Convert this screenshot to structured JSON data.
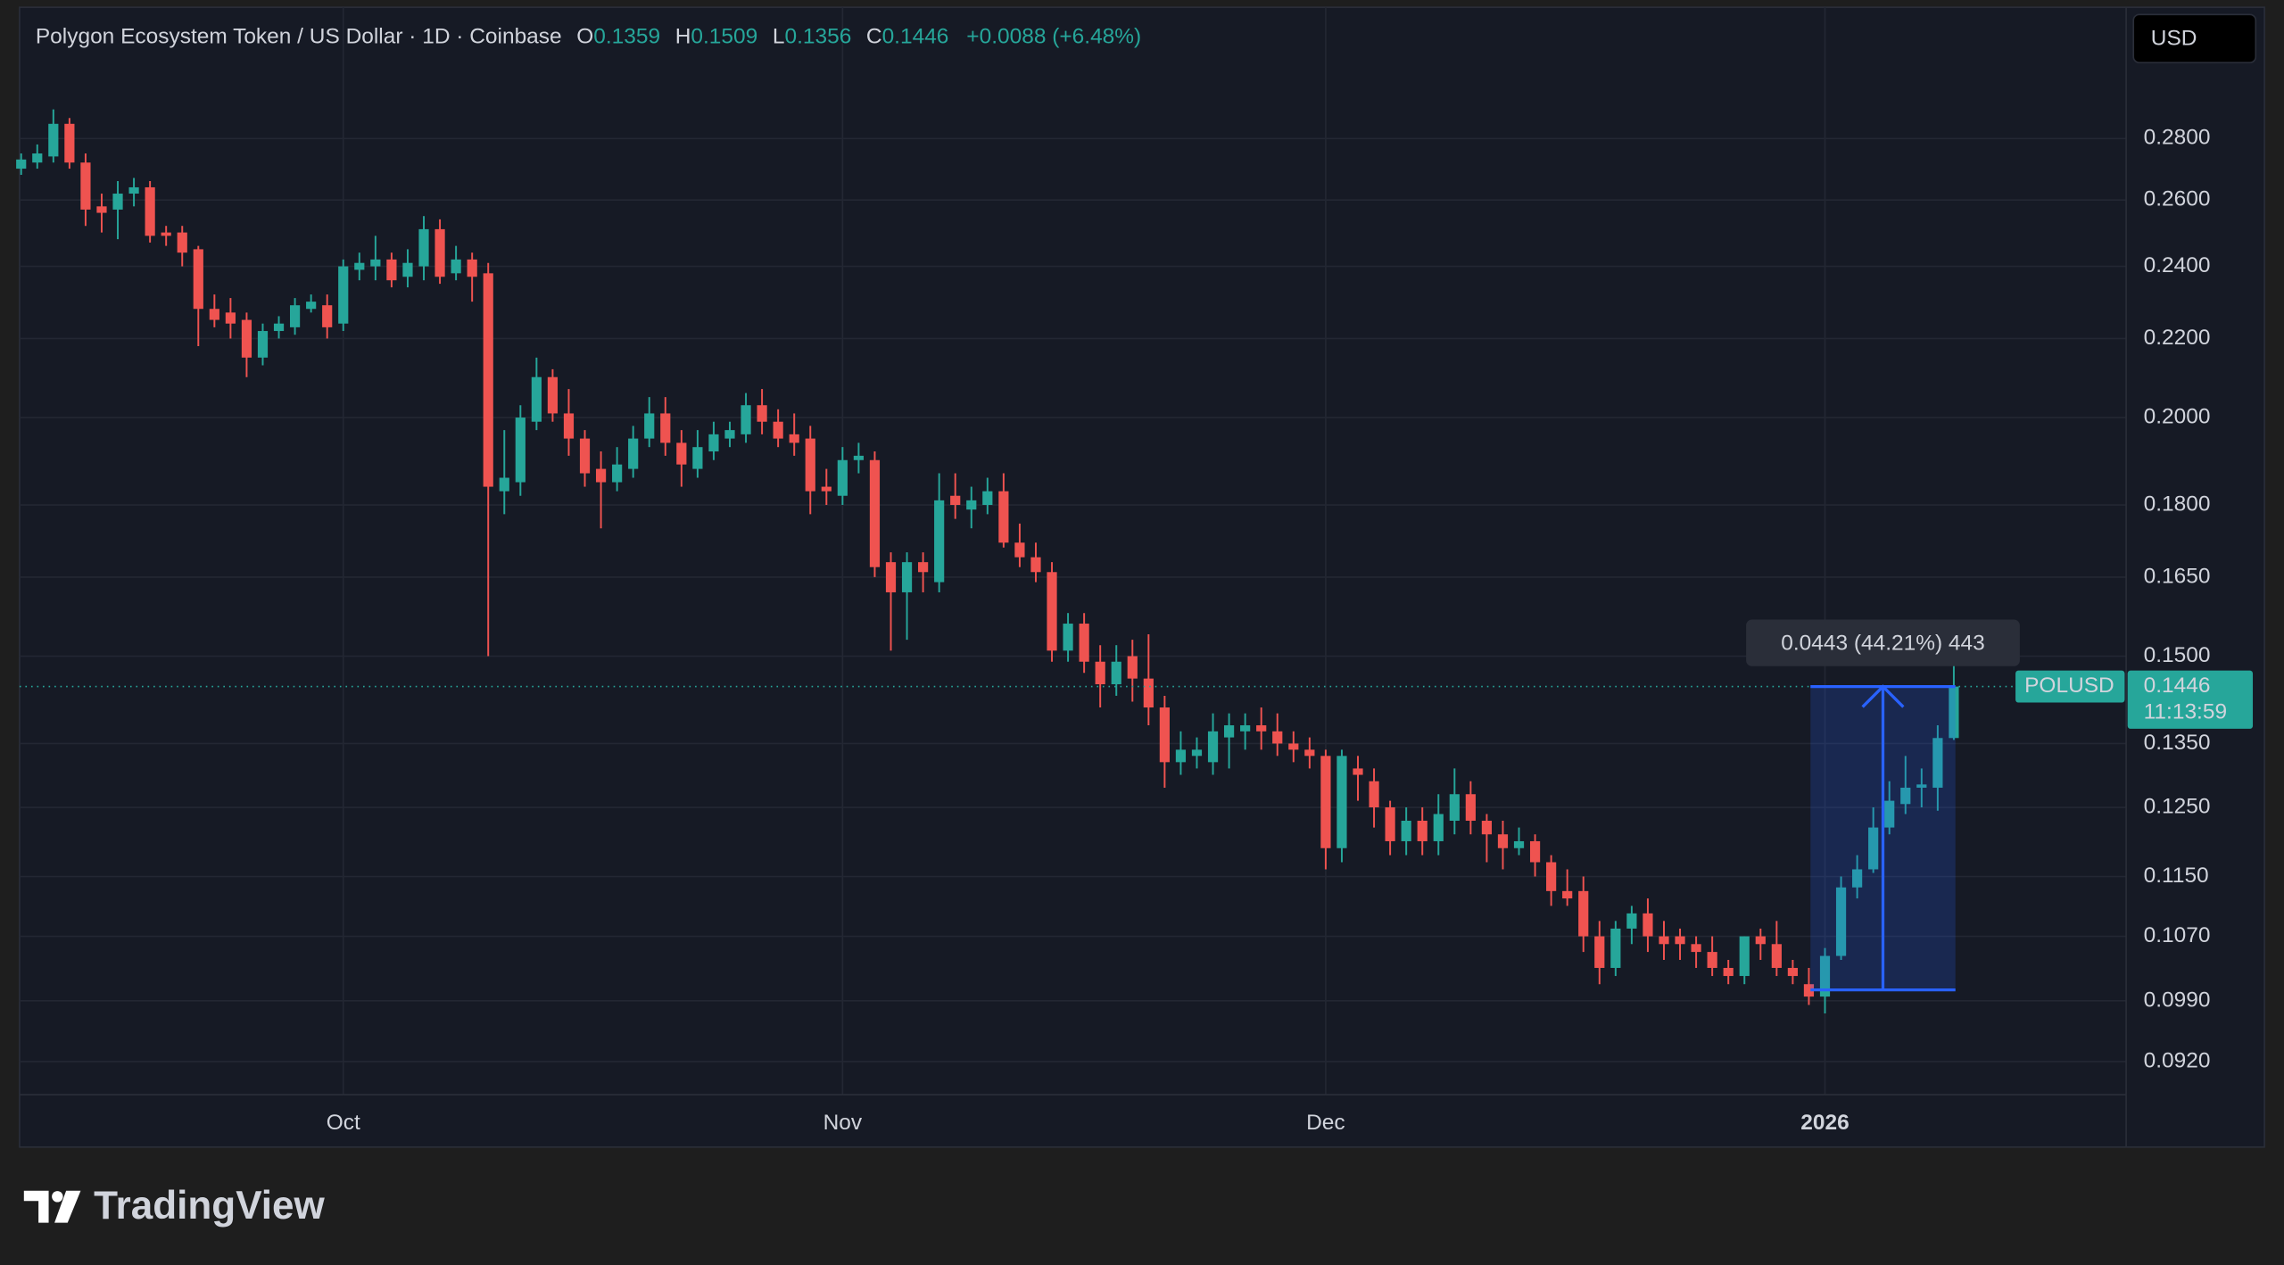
{
  "header": {
    "title": "Polygon Ecosystem Token / US Dollar · 1D · Coinbase",
    "ohlc_labels": [
      "O",
      "H",
      "L",
      "C"
    ],
    "change": "+0.0088 (+6.48%)",
    "currency": "USD"
  },
  "footer": {
    "brand": "TradingView"
  },
  "chart_data": {
    "type": "candlestick",
    "log_scale": true,
    "grid": true,
    "up_color": "#26a69a",
    "down_color": "#ef5350",
    "symbol": "POLUSD",
    "countdown": "11:13:59",
    "measure": {
      "label": "0.0443 (44.21%) 443",
      "from": 0.1003,
      "to": 0.1446,
      "x_from": 91.1,
      "x_to": 100.1
    },
    "xlim": [
      -20.1,
      110.7
    ],
    "xticks": [
      {
        "value": 0,
        "label": "Oct"
      },
      {
        "value": 31,
        "label": "Nov"
      },
      {
        "value": 61,
        "label": "Dec"
      },
      {
        "value": 92,
        "label": "2026"
      }
    ],
    "ylim": [
      0.0884,
      0.328
    ],
    "yticks": [
      {
        "value": 0.28,
        "label": "0.2800"
      },
      {
        "value": 0.26,
        "label": "0.2600"
      },
      {
        "value": 0.24,
        "label": "0.2400"
      },
      {
        "value": 0.22,
        "label": "0.2200"
      },
      {
        "value": 0.2,
        "label": "0.2000"
      },
      {
        "value": 0.18,
        "label": "0.1800"
      },
      {
        "value": 0.165,
        "label": "0.1650"
      },
      {
        "value": 0.15,
        "label": "0.1500"
      },
      {
        "value": 0.135,
        "label": "0.1350"
      },
      {
        "value": 0.125,
        "label": "0.1250"
      },
      {
        "value": 0.115,
        "label": "0.1150"
      },
      {
        "value": 0.107,
        "label": "0.1070"
      },
      {
        "value": 0.099,
        "label": "0.0990"
      },
      {
        "value": 0.092,
        "label": "0.0920"
      }
    ],
    "x": [
      -20,
      -19,
      -18,
      -17,
      -16,
      -15,
      -14,
      -13,
      -12,
      -11,
      -10,
      -9,
      -8,
      -7,
      -6,
      -5,
      -4,
      -3,
      -2,
      -1,
      0,
      1,
      2,
      3,
      4,
      5,
      6,
      7,
      8,
      9,
      10,
      11,
      12,
      13,
      14,
      15,
      16,
      17,
      18,
      19,
      20,
      21,
      22,
      23,
      24,
      25,
      26,
      27,
      28,
      29,
      30,
      31,
      32,
      33,
      34,
      35,
      36,
      37,
      38,
      39,
      40,
      41,
      42,
      43,
      44,
      45,
      46,
      47,
      48,
      49,
      50,
      51,
      52,
      53,
      54,
      55,
      56,
      57,
      58,
      59,
      60,
      61,
      62,
      63,
      64,
      65,
      66,
      67,
      68,
      69,
      70,
      71,
      72,
      73,
      74,
      75,
      76,
      77,
      78,
      79,
      80,
      81,
      82,
      83,
      84,
      85,
      86,
      87,
      88,
      89,
      90,
      91,
      92,
      93,
      94,
      95,
      96,
      97,
      98,
      99,
      100
    ],
    "open": [
      0.27,
      0.272,
      0.274,
      0.285,
      0.272,
      0.258,
      0.257,
      0.262,
      0.264,
      0.25,
      0.25,
      0.245,
      0.228,
      0.227,
      0.225,
      0.215,
      0.222,
      0.223,
      0.228,
      0.229,
      0.224,
      0.239,
      0.24,
      0.242,
      0.237,
      0.24,
      0.251,
      0.238,
      0.242,
      0.238,
      0.183,
      0.185,
      0.199,
      0.21,
      0.201,
      0.195,
      0.188,
      0.185,
      0.188,
      0.195,
      0.201,
      0.194,
      0.188,
      0.192,
      0.195,
      0.196,
      0.203,
      0.199,
      0.196,
      0.195,
      0.184,
      0.182,
      0.19,
      0.19,
      0.168,
      0.162,
      0.168,
      0.164,
      0.182,
      0.179,
      0.18,
      0.183,
      0.172,
      0.169,
      0.166,
      0.151,
      0.156,
      0.149,
      0.145,
      0.15,
      0.146,
      0.141,
      0.132,
      0.133,
      0.132,
      0.136,
      0.137,
      0.138,
      0.137,
      0.135,
      0.134,
      0.133,
      0.119,
      0.131,
      0.129,
      0.125,
      0.12,
      0.123,
      0.12,
      0.123,
      0.127,
      0.123,
      0.121,
      0.119,
      0.12,
      0.117,
      0.113,
      0.113,
      0.107,
      0.103,
      0.108,
      0.11,
      0.107,
      0.107,
      0.106,
      0.105,
      0.103,
      0.102,
      0.107,
      0.106,
      0.103,
      0.101,
      0.0995,
      0.1045,
      0.1135,
      0.116,
      0.122,
      0.1255,
      0.128,
      0.128,
      0.1359
    ],
    "high": [
      0.275,
      0.278,
      0.29,
      0.287,
      0.275,
      0.262,
      0.266,
      0.267,
      0.266,
      0.252,
      0.252,
      0.246,
      0.232,
      0.231,
      0.227,
      0.224,
      0.226,
      0.231,
      0.232,
      0.232,
      0.242,
      0.244,
      0.249,
      0.244,
      0.245,
      0.255,
      0.254,
      0.246,
      0.244,
      0.241,
      0.197,
      0.203,
      0.215,
      0.212,
      0.207,
      0.197,
      0.192,
      0.193,
      0.198,
      0.205,
      0.205,
      0.197,
      0.197,
      0.199,
      0.199,
      0.206,
      0.207,
      0.202,
      0.201,
      0.198,
      0.188,
      0.193,
      0.194,
      0.192,
      0.17,
      0.17,
      0.17,
      0.187,
      0.187,
      0.184,
      0.186,
      0.187,
      0.176,
      0.172,
      0.168,
      0.158,
      0.158,
      0.152,
      0.152,
      0.153,
      0.154,
      0.143,
      0.137,
      0.136,
      0.14,
      0.14,
      0.14,
      0.141,
      0.14,
      0.137,
      0.136,
      0.134,
      0.134,
      0.133,
      0.131,
      0.126,
      0.125,
      0.125,
      0.127,
      0.131,
      0.129,
      0.124,
      0.123,
      0.122,
      0.121,
      0.118,
      0.116,
      0.115,
      0.109,
      0.109,
      0.111,
      0.112,
      0.109,
      0.108,
      0.107,
      0.107,
      0.104,
      0.107,
      0.108,
      0.109,
      0.104,
      0.103,
      0.1055,
      0.115,
      0.118,
      0.125,
      0.129,
      0.133,
      0.131,
      0.138,
      0.1509
    ],
    "low": [
      0.268,
      0.27,
      0.272,
      0.27,
      0.252,
      0.25,
      0.248,
      0.258,
      0.247,
      0.246,
      0.24,
      0.218,
      0.223,
      0.22,
      0.21,
      0.213,
      0.22,
      0.221,
      0.227,
      0.22,
      0.222,
      0.236,
      0.236,
      0.234,
      0.234,
      0.236,
      0.235,
      0.236,
      0.23,
      0.15,
      0.178,
      0.182,
      0.197,
      0.199,
      0.191,
      0.184,
      0.175,
      0.183,
      0.186,
      0.193,
      0.191,
      0.184,
      0.186,
      0.19,
      0.193,
      0.194,
      0.196,
      0.193,
      0.191,
      0.178,
      0.18,
      0.18,
      0.187,
      0.165,
      0.151,
      0.153,
      0.162,
      0.162,
      0.177,
      0.175,
      0.178,
      0.171,
      0.167,
      0.164,
      0.149,
      0.149,
      0.147,
      0.141,
      0.143,
      0.142,
      0.138,
      0.128,
      0.13,
      0.131,
      0.13,
      0.131,
      0.134,
      0.134,
      0.133,
      0.132,
      0.131,
      0.116,
      0.117,
      0.126,
      0.122,
      0.118,
      0.118,
      0.118,
      0.118,
      0.121,
      0.121,
      0.117,
      0.116,
      0.118,
      0.115,
      0.111,
      0.111,
      0.105,
      0.101,
      0.102,
      0.106,
      0.105,
      0.104,
      0.104,
      0.103,
      0.102,
      0.101,
      0.101,
      0.104,
      0.102,
      0.101,
      0.0985,
      0.0975,
      0.104,
      0.112,
      0.1155,
      0.121,
      0.124,
      0.125,
      0.1245,
      0.1356
    ],
    "close": [
      0.273,
      0.275,
      0.285,
      0.272,
      0.257,
      0.256,
      0.262,
      0.264,
      0.249,
      0.249,
      0.244,
      0.228,
      0.225,
      0.224,
      0.215,
      0.222,
      0.224,
      0.229,
      0.23,
      0.223,
      0.24,
      0.241,
      0.242,
      0.236,
      0.241,
      0.251,
      0.237,
      0.242,
      0.237,
      0.184,
      0.186,
      0.2,
      0.21,
      0.201,
      0.195,
      0.187,
      0.185,
      0.189,
      0.195,
      0.201,
      0.194,
      0.189,
      0.193,
      0.196,
      0.197,
      0.203,
      0.199,
      0.195,
      0.194,
      0.183,
      0.183,
      0.19,
      0.191,
      0.167,
      0.162,
      0.168,
      0.166,
      0.181,
      0.18,
      0.181,
      0.183,
      0.172,
      0.169,
      0.166,
      0.151,
      0.156,
      0.149,
      0.145,
      0.149,
      0.146,
      0.141,
      0.132,
      0.134,
      0.134,
      0.137,
      0.138,
      0.138,
      0.137,
      0.135,
      0.134,
      0.133,
      0.119,
      0.133,
      0.13,
      0.125,
      0.12,
      0.123,
      0.12,
      0.124,
      0.127,
      0.123,
      0.121,
      0.119,
      0.12,
      0.117,
      0.113,
      0.112,
      0.107,
      0.103,
      0.108,
      0.11,
      0.107,
      0.106,
      0.106,
      0.105,
      0.103,
      0.102,
      0.107,
      0.106,
      0.103,
      0.102,
      0.0995,
      0.1045,
      0.1135,
      0.116,
      0.122,
      0.126,
      0.128,
      0.1285,
      0.1359,
      0.1446
    ]
  }
}
